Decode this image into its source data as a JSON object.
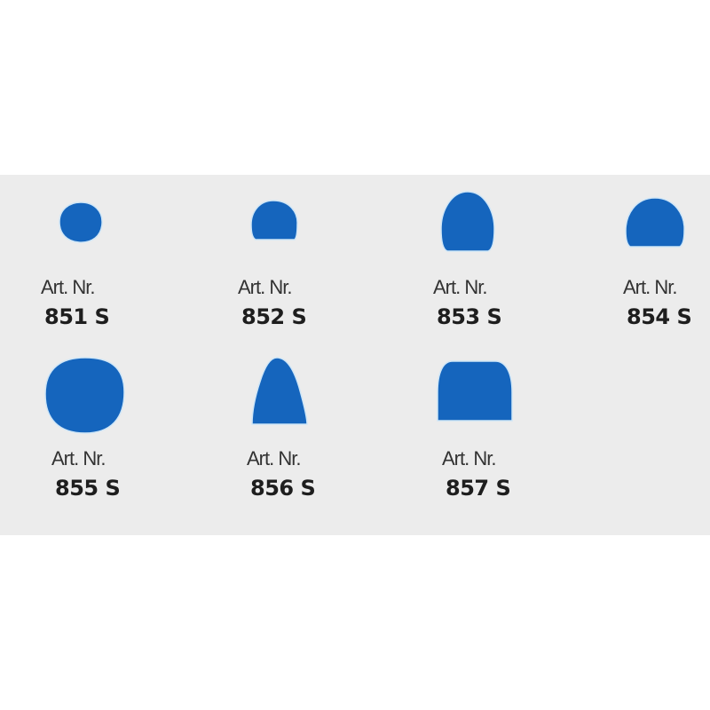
{
  "accent_color": "#1565bd",
  "background_band_color": "#ececec",
  "items": [
    {
      "label": "Art. Nr.",
      "number": "851 S",
      "shape": "small-ball"
    },
    {
      "label": "Art. Nr.",
      "number": "852 S",
      "shape": "small-dome"
    },
    {
      "label": "Art. Nr.",
      "number": "853 S",
      "shape": "tall-dome"
    },
    {
      "label": "Art. Nr.",
      "number": "854 S",
      "shape": "wide-dome"
    },
    {
      "label": "Art. Nr.",
      "number": "855 S",
      "shape": "large-ball"
    },
    {
      "label": "Art. Nr.",
      "number": "856 S",
      "shape": "bullet"
    },
    {
      "label": "Art. Nr.",
      "number": "857 S",
      "shape": "flat-cylinder"
    }
  ]
}
